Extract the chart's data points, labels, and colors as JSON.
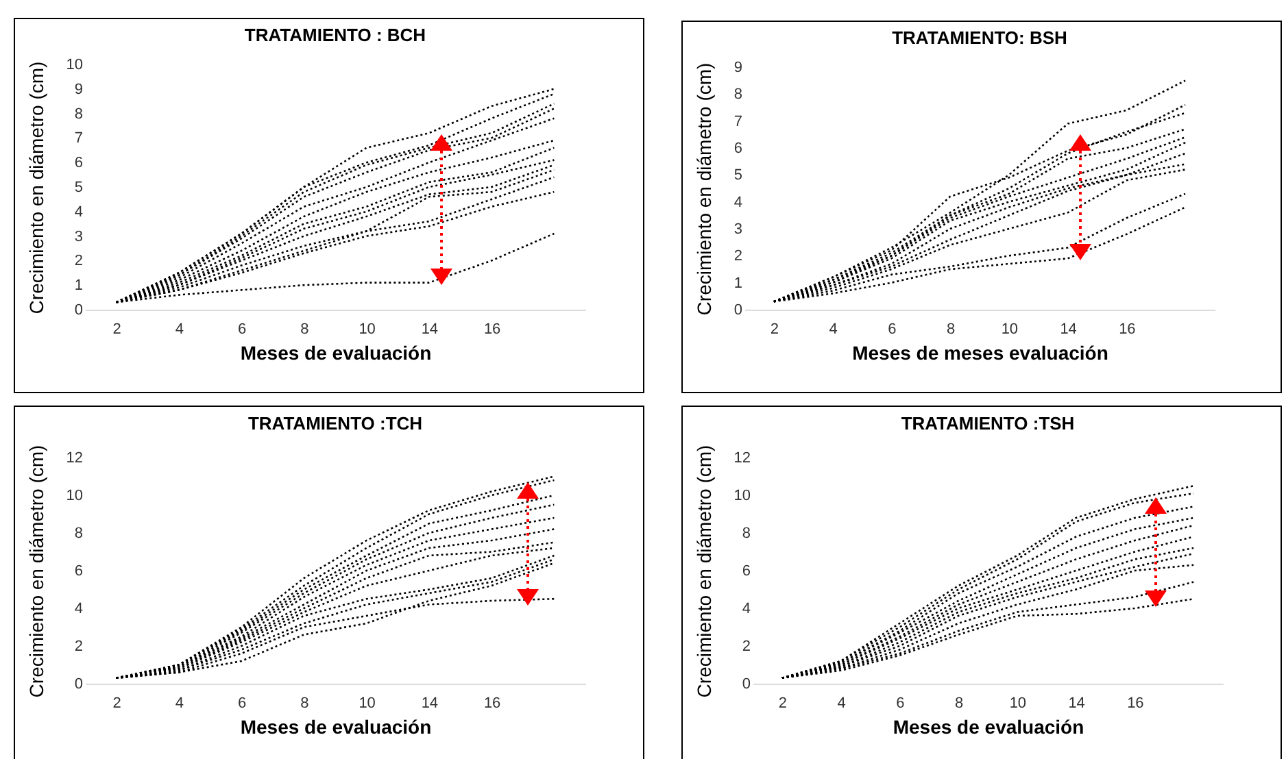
{
  "chart_data": [
    {
      "type": "line",
      "title": "TRATAMIENTO : BCH",
      "xlabel": "Meses de evaluación",
      "ylabel": "Crecimiento en diámetro (cm)",
      "categories": [
        "2",
        "4",
        "6",
        "8",
        "10",
        "14",
        "16",
        null
      ],
      "ylim": [
        0,
        10
      ],
      "yticks": [
        0,
        1,
        2,
        3,
        4,
        5,
        6,
        7,
        8,
        9,
        10
      ],
      "line_style": "dotted",
      "series": [
        {
          "color": "#000000",
          "values": [
            0.3,
            1.5,
            3.1,
            5.0,
            6.6,
            7.2,
            8.3,
            9.0
          ]
        },
        {
          "color": "#000000",
          "values": [
            0.3,
            1.5,
            3.1,
            5.0,
            6.0,
            6.7,
            7.8,
            8.8
          ]
        },
        {
          "color": "#000000",
          "values": [
            0.3,
            1.4,
            3.0,
            4.8,
            5.9,
            6.6,
            7.2,
            8.4
          ]
        },
        {
          "color": "#000000",
          "values": [
            0.3,
            1.4,
            2.9,
            4.6,
            5.6,
            6.5,
            7.0,
            8.2
          ]
        },
        {
          "color": "#000000",
          "values": [
            0.3,
            1.3,
            2.7,
            4.2,
            5.0,
            6.0,
            6.9,
            7.8
          ]
        },
        {
          "color": "#000000",
          "values": [
            0.3,
            1.2,
            2.4,
            3.8,
            4.8,
            5.6,
            6.2,
            6.9
          ]
        },
        {
          "color": "#000000",
          "values": [
            0.3,
            1.1,
            2.2,
            3.5,
            4.2,
            5.2,
            5.6,
            6.6
          ]
        },
        {
          "color": "#000000",
          "values": [
            0.3,
            1.0,
            2.1,
            3.3,
            4.0,
            5.0,
            5.5,
            6.1
          ]
        },
        {
          "color": "#000000",
          "values": [
            0.3,
            1.0,
            2.0,
            3.0,
            3.8,
            4.7,
            5.0,
            5.9
          ]
        },
        {
          "color": "#000000",
          "values": [
            0.3,
            0.9,
            1.8,
            2.6,
            3.2,
            4.6,
            4.8,
            5.7
          ]
        },
        {
          "color": "#000000",
          "values": [
            0.3,
            0.8,
            1.6,
            2.4,
            3.2,
            3.6,
            4.5,
            5.4
          ]
        },
        {
          "color": "#000000",
          "values": [
            0.3,
            0.8,
            1.5,
            2.3,
            3.0,
            3.4,
            4.2,
            4.8
          ]
        },
        {
          "color": "#000000",
          "values": [
            0.3,
            0.6,
            0.8,
            1.0,
            1.1,
            1.1,
            2.0,
            3.1
          ]
        }
      ]
    },
    {
      "type": "line",
      "title": "TRATAMIENTO: BSH",
      "xlabel": "Meses de meses evaluación",
      "ylabel": "Crecimiento en diámetro (cm)",
      "categories": [
        "2",
        "4",
        "6",
        "8",
        "10",
        "14",
        "16",
        null
      ],
      "ylim": [
        0,
        9
      ],
      "yticks": [
        0,
        1,
        2,
        3,
        4,
        5,
        6,
        7,
        8,
        9
      ],
      "line_style": "dotted",
      "series": [
        {
          "color": "#000000",
          "values": [
            0.3,
            1.2,
            2.3,
            3.6,
            5.0,
            6.9,
            7.4,
            8.5
          ]
        },
        {
          "color": "#000000",
          "values": [
            0.3,
            1.2,
            2.2,
            4.2,
            4.9,
            5.9,
            6.5,
            7.6
          ]
        },
        {
          "color": "#000000",
          "values": [
            0.3,
            1.1,
            2.1,
            3.5,
            4.5,
            5.8,
            6.6,
            7.3
          ]
        },
        {
          "color": "#000000",
          "values": [
            0.3,
            1.1,
            2.0,
            3.5,
            4.3,
            5.6,
            6.0,
            6.7
          ]
        },
        {
          "color": "#000000",
          "values": [
            0.3,
            1.0,
            2.0,
            3.4,
            4.2,
            4.9,
            5.6,
            6.4
          ]
        },
        {
          "color": "#000000",
          "values": [
            0.3,
            1.0,
            1.9,
            3.3,
            4.0,
            4.6,
            5.2,
            6.2
          ]
        },
        {
          "color": "#000000",
          "values": [
            0.3,
            0.9,
            1.7,
            3.0,
            3.8,
            4.5,
            5.0,
            5.8
          ]
        },
        {
          "color": "#000000",
          "values": [
            0.3,
            0.9,
            1.6,
            2.6,
            3.5,
            4.4,
            5.0,
            5.4
          ]
        },
        {
          "color": "#000000",
          "values": [
            0.3,
            0.8,
            1.5,
            2.4,
            3.0,
            3.6,
            4.8,
            5.2
          ]
        },
        {
          "color": "#000000",
          "values": [
            0.3,
            0.7,
            1.3,
            1.6,
            2.0,
            2.3,
            3.4,
            4.3
          ]
        },
        {
          "color": "#000000",
          "values": [
            0.3,
            0.6,
            1.0,
            1.5,
            1.7,
            1.9,
            2.8,
            3.8
          ]
        }
      ]
    },
    {
      "type": "line",
      "title": "TRATAMIENTO :TCH",
      "xlabel": "Meses de evaluación",
      "ylabel": "Crecimiento en diámetro (cm)",
      "categories": [
        "2",
        "4",
        "6",
        "8",
        "10",
        "14",
        "16",
        null
      ],
      "ylim": [
        0,
        12
      ],
      "yticks": [
        0,
        2,
        4,
        6,
        8,
        10,
        12
      ],
      "line_style": "dotted",
      "series": [
        {
          "color": "#000000",
          "values": [
            0.3,
            1.0,
            3.0,
            5.6,
            7.6,
            9.2,
            10.2,
            11.0
          ]
        },
        {
          "color": "#000000",
          "values": [
            0.3,
            1.0,
            2.9,
            5.2,
            7.2,
            9.0,
            10.0,
            10.8
          ]
        },
        {
          "color": "#000000",
          "values": [
            0.3,
            1.0,
            2.8,
            5.0,
            6.8,
            8.5,
            9.2,
            10.0
          ]
        },
        {
          "color": "#000000",
          "values": [
            0.3,
            0.9,
            2.7,
            4.8,
            6.6,
            8.0,
            8.8,
            9.5
          ]
        },
        {
          "color": "#000000",
          "values": [
            0.3,
            0.9,
            2.5,
            4.6,
            6.3,
            7.6,
            8.2,
            8.8
          ]
        },
        {
          "color": "#000000",
          "values": [
            0.3,
            0.9,
            2.4,
            4.2,
            6.0,
            7.2,
            7.6,
            8.2
          ]
        },
        {
          "color": "#000000",
          "values": [
            0.3,
            0.8,
            2.3,
            4.0,
            5.6,
            6.8,
            7.0,
            7.5
          ]
        },
        {
          "color": "#000000",
          "values": [
            0.3,
            0.8,
            2.2,
            3.8,
            5.2,
            6.0,
            6.8,
            7.2
          ]
        },
        {
          "color": "#000000",
          "values": [
            0.3,
            0.7,
            2.0,
            3.6,
            4.5,
            5.0,
            5.6,
            6.8
          ]
        },
        {
          "color": "#000000",
          "values": [
            0.3,
            0.7,
            1.8,
            3.2,
            4.2,
            4.8,
            5.4,
            6.6
          ]
        },
        {
          "color": "#000000",
          "values": [
            0.3,
            0.6,
            1.6,
            3.0,
            3.6,
            4.2,
            4.4,
            4.5
          ]
        },
        {
          "color": "#000000",
          "values": [
            0.3,
            0.6,
            1.2,
            2.6,
            3.2,
            4.4,
            5.2,
            6.4
          ]
        }
      ]
    },
    {
      "type": "line",
      "title": "TRATAMIENTO :TSH",
      "xlabel": "Meses de evaluación",
      "ylabel": "Crecimiento en diámetro (cm)",
      "categories": [
        "2",
        "4",
        "6",
        "8",
        "10",
        "14",
        "16",
        null
      ],
      "ylim": [
        0,
        12
      ],
      "yticks": [
        0,
        2,
        4,
        6,
        8,
        10,
        12
      ],
      "line_style": "dotted",
      "series": [
        {
          "color": "#000000",
          "values": [
            0.3,
            1.2,
            3.2,
            5.2,
            6.8,
            8.8,
            9.8,
            10.5
          ]
        },
        {
          "color": "#000000",
          "values": [
            0.3,
            1.2,
            3.0,
            5.0,
            6.6,
            8.6,
            9.6,
            10.1
          ]
        },
        {
          "color": "#000000",
          "values": [
            0.3,
            1.1,
            2.8,
            4.8,
            6.2,
            7.8,
            8.8,
            9.4
          ]
        },
        {
          "color": "#000000",
          "values": [
            0.3,
            1.1,
            2.7,
            4.4,
            5.8,
            7.2,
            8.2,
            8.8
          ]
        },
        {
          "color": "#000000",
          "values": [
            0.3,
            1.0,
            2.5,
            4.2,
            5.4,
            6.6,
            7.6,
            8.4
          ]
        },
        {
          "color": "#000000",
          "values": [
            0.3,
            1.0,
            2.4,
            4.0,
            5.0,
            6.0,
            7.0,
            7.8
          ]
        },
        {
          "color": "#000000",
          "values": [
            0.3,
            0.9,
            2.2,
            3.8,
            4.8,
            5.6,
            6.6,
            7.2
          ]
        },
        {
          "color": "#000000",
          "values": [
            0.3,
            0.9,
            2.0,
            3.6,
            4.6,
            5.4,
            6.2,
            6.9
          ]
        },
        {
          "color": "#000000",
          "values": [
            0.3,
            0.8,
            1.8,
            3.2,
            4.2,
            5.0,
            6.0,
            6.3
          ]
        },
        {
          "color": "#000000",
          "values": [
            0.3,
            0.8,
            1.6,
            2.8,
            3.8,
            4.2,
            4.6,
            5.4
          ]
        },
        {
          "color": "#000000",
          "values": [
            0.3,
            0.7,
            1.5,
            2.6,
            3.6,
            3.7,
            4.0,
            4.5
          ]
        }
      ]
    }
  ]
}
